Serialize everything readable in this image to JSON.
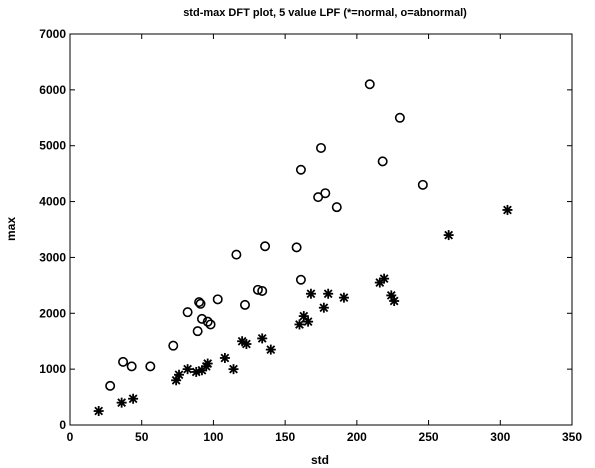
{
  "chart_data": {
    "type": "scatter",
    "title": "std-max DFT plot, 5 value LPF (*=normal, o=abnormal)",
    "xlabel": "std",
    "ylabel": "max",
    "xlim": [
      0,
      350
    ],
    "ylim": [
      0,
      7000
    ],
    "x_ticks": [
      "0",
      "50",
      "100",
      "150",
      "200",
      "250",
      "300",
      "350"
    ],
    "y_ticks": [
      "0",
      "1000",
      "2000",
      "3000",
      "4000",
      "5000",
      "6000",
      "7000"
    ],
    "grid": false,
    "series": [
      {
        "marker": "asterisk",
        "points": [
          [
            20,
            250
          ],
          [
            36,
            400
          ],
          [
            44,
            470
          ],
          [
            74,
            800
          ],
          [
            76,
            900
          ],
          [
            82,
            1000
          ],
          [
            88,
            950
          ],
          [
            92,
            980
          ],
          [
            95,
            1050
          ],
          [
            96,
            1100
          ],
          [
            108,
            1200
          ],
          [
            114,
            1000
          ],
          [
            120,
            1500
          ],
          [
            123,
            1450
          ],
          [
            134,
            1550
          ],
          [
            140,
            1350
          ],
          [
            160,
            1800
          ],
          [
            163,
            1950
          ],
          [
            166,
            1850
          ],
          [
            168,
            2350
          ],
          [
            177,
            2100
          ],
          [
            180,
            2350
          ],
          [
            191,
            2280
          ],
          [
            216,
            2550
          ],
          [
            219,
            2620
          ],
          [
            224,
            2320
          ],
          [
            226,
            2220
          ],
          [
            264,
            3400
          ],
          [
            305,
            3850
          ]
        ]
      },
      {
        "marker": "circle",
        "points": [
          [
            28,
            700
          ],
          [
            37,
            1130
          ],
          [
            43,
            1050
          ],
          [
            56,
            1050
          ],
          [
            72,
            1420
          ],
          [
            82,
            2020
          ],
          [
            89,
            1680
          ],
          [
            90,
            2200
          ],
          [
            91,
            2170
          ],
          [
            92,
            1900
          ],
          [
            96,
            1850
          ],
          [
            98,
            1800
          ],
          [
            103,
            2250
          ],
          [
            116,
            3050
          ],
          [
            122,
            2150
          ],
          [
            131,
            2420
          ],
          [
            134,
            2400
          ],
          [
            136,
            3200
          ],
          [
            158,
            3180
          ],
          [
            161,
            4570
          ],
          [
            161,
            2600
          ],
          [
            173,
            4080
          ],
          [
            175,
            4960
          ],
          [
            178,
            4150
          ],
          [
            186,
            3900
          ],
          [
            209,
            6100
          ],
          [
            218,
            4720
          ],
          [
            230,
            5500
          ],
          [
            246,
            4300
          ]
        ]
      }
    ]
  }
}
